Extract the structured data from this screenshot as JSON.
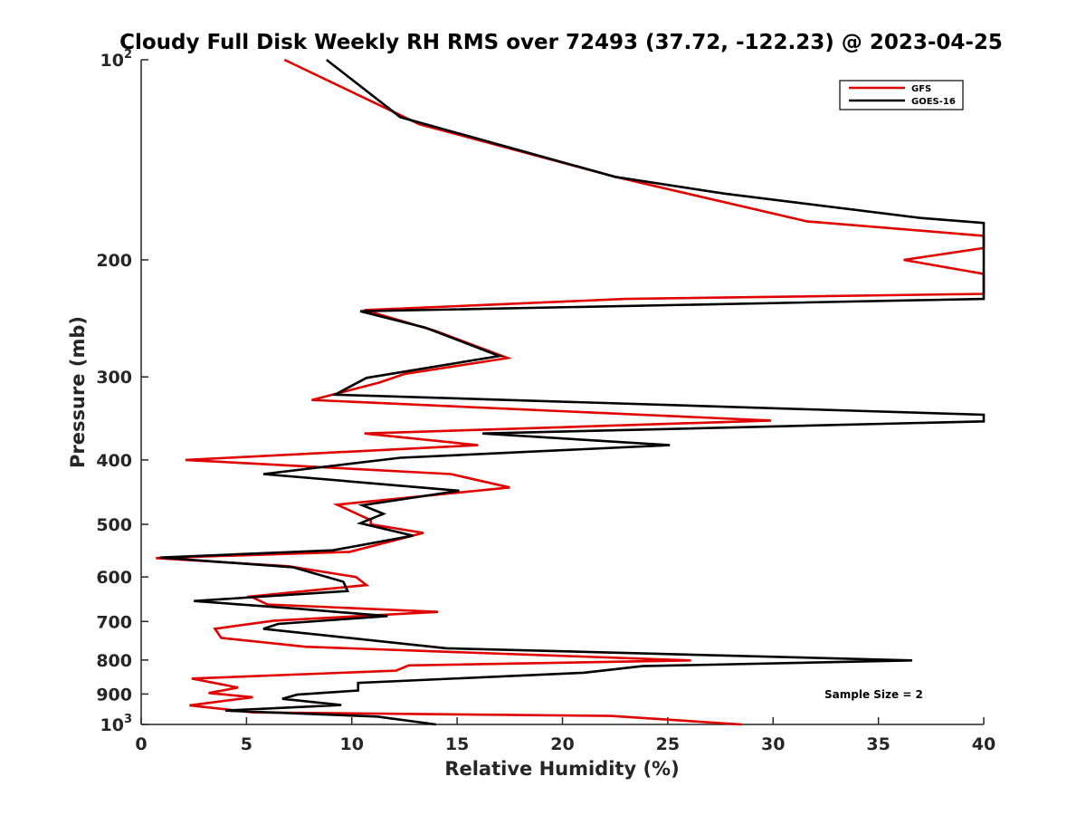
{
  "chart_data": {
    "type": "line",
    "title": "Cloudy Full Disk Weekly RH RMS over 72493 (37.72, -122.23) @ 2023-04-25",
    "xlabel": "Relative Humidity (%)",
    "ylabel": "Pressure (mb)",
    "xlim": [
      0,
      40
    ],
    "ylim": [
      100,
      1000
    ],
    "y_scale": "log",
    "y_reversed": true,
    "grid": false,
    "legend_position": "top-right",
    "x_ticks": [
      "0",
      "5",
      "10",
      "15",
      "20",
      "25",
      "30",
      "35",
      "40"
    ],
    "y_ticks": [
      {
        "value": 100,
        "base": "10",
        "sup": "2"
      },
      {
        "value": 200,
        "label": "200"
      },
      {
        "value": 300,
        "label": "300"
      },
      {
        "value": 400,
        "label": "400"
      },
      {
        "value": 500,
        "label": "500"
      },
      {
        "value": 600,
        "label": "600"
      },
      {
        "value": 700,
        "label": "700"
      },
      {
        "value": 800,
        "label": "800"
      },
      {
        "value": 900,
        "label": "900"
      },
      {
        "value": 1000,
        "base": "10",
        "sup": "3"
      }
    ],
    "annotation": "Sample Size = 2",
    "series": [
      {
        "name": "GFS",
        "color": "#e00000",
        "points": [
          [
            6.8,
            100
          ],
          [
            13.2,
            125
          ],
          [
            22.5,
            150
          ],
          [
            31.6,
            175
          ],
          [
            40,
            184
          ],
          [
            40,
            192
          ],
          [
            36.2,
            200
          ],
          [
            40,
            210
          ],
          [
            40,
            225
          ],
          [
            23,
            229
          ],
          [
            10.6,
            238
          ],
          [
            14,
            256
          ],
          [
            17.4,
            281
          ],
          [
            12.5,
            297
          ],
          [
            11.3,
            306
          ],
          [
            8.1,
            325
          ],
          [
            29.9,
            349
          ],
          [
            10.6,
            365
          ],
          [
            16,
            380
          ],
          [
            2.1,
            400
          ],
          [
            14.7,
            420
          ],
          [
            17.5,
            440
          ],
          [
            9.3,
            467
          ],
          [
            10.9,
            493
          ],
          [
            10.9,
            500
          ],
          [
            13.4,
            515
          ],
          [
            9.9,
            550
          ],
          [
            0.7,
            562
          ],
          [
            7,
            578
          ],
          [
            10.2,
            600
          ],
          [
            10.7,
            617
          ],
          [
            5.2,
            642
          ],
          [
            6,
            660
          ],
          [
            14.1,
            677
          ],
          [
            6.3,
            698
          ],
          [
            3.5,
            718
          ],
          [
            3.8,
            741
          ],
          [
            7.8,
            764
          ],
          [
            26.1,
            801
          ],
          [
            12.7,
            815
          ],
          [
            12.1,
            830
          ],
          [
            2.4,
            853
          ],
          [
            4.6,
            880
          ],
          [
            3.2,
            897
          ],
          [
            5.3,
            910
          ],
          [
            2.3,
            936
          ],
          [
            5.3,
            959
          ],
          [
            22.3,
            971
          ],
          [
            28.5,
            1000
          ]
        ]
      },
      {
        "name": "GOES-16",
        "color": "#000000",
        "points": [
          [
            8.8,
            100
          ],
          [
            12.3,
            122
          ],
          [
            22.5,
            150
          ],
          [
            27.7,
            159
          ],
          [
            37,
            173
          ],
          [
            40,
            176
          ],
          [
            40,
            229
          ],
          [
            10.4,
            239
          ],
          [
            13.5,
            253
          ],
          [
            17,
            279
          ],
          [
            10.7,
            301
          ],
          [
            9.2,
            319
          ],
          [
            40,
            342
          ],
          [
            40,
            350
          ],
          [
            16.2,
            365
          ],
          [
            25.1,
            380
          ],
          [
            12.3,
            397
          ],
          [
            5.8,
            420
          ],
          [
            15.1,
            445
          ],
          [
            10.5,
            468
          ],
          [
            11.5,
            482
          ],
          [
            10.4,
            498
          ],
          [
            12.9,
            520
          ],
          [
            9.1,
            547
          ],
          [
            0.9,
            561
          ],
          [
            7.2,
            580
          ],
          [
            9.6,
            610
          ],
          [
            9.8,
            630
          ],
          [
            2.5,
            652
          ],
          [
            7.5,
            670
          ],
          [
            11.7,
            687
          ],
          [
            6.5,
            706
          ],
          [
            5.8,
            718
          ],
          [
            14.5,
            768
          ],
          [
            36.6,
            801
          ],
          [
            23.8,
            817
          ],
          [
            21,
            836
          ],
          [
            10.3,
            866
          ],
          [
            10.3,
            889
          ],
          [
            7.4,
            902
          ],
          [
            6.7,
            915
          ],
          [
            9.5,
            935
          ],
          [
            4,
            953
          ],
          [
            11.2,
            973
          ],
          [
            14,
            1000
          ]
        ]
      }
    ]
  }
}
